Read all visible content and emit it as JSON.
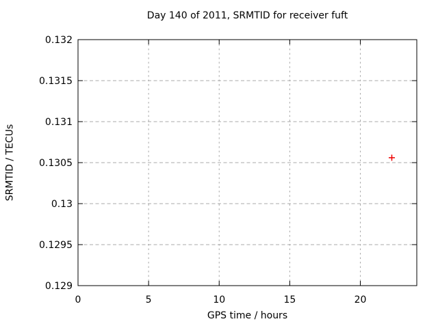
{
  "chart_data": {
    "type": "scatter",
    "title": "Day 140 of 2011, SRMTID for receiver fuft",
    "xlabel": "GPS time / hours",
    "ylabel": "SRMTID / TECUs",
    "xlim": [
      0,
      24
    ],
    "ylim": [
      0.129,
      0.132
    ],
    "xticks": [
      0,
      5,
      10,
      15,
      20
    ],
    "xtick_labels": [
      "0",
      "5",
      "10",
      "15",
      "20"
    ],
    "yticks": [
      0.129,
      0.1295,
      0.13,
      0.1305,
      0.131,
      0.1315,
      0.132
    ],
    "ytick_labels": [
      "0.129",
      "0.1295",
      "0.13",
      "0.1305",
      "0.131",
      "0.1315",
      "0.132"
    ],
    "grid": true,
    "legend_position": "none",
    "series": [
      {
        "name": "SRMTID",
        "marker": "plus",
        "color": "#ee0000",
        "points": [
          {
            "x": 22.23,
            "y": 0.13056
          }
        ]
      }
    ],
    "colors": {
      "background": "#ffffff",
      "axis": "#000000",
      "grid": "#a8a8a8",
      "text": "#000000"
    }
  }
}
